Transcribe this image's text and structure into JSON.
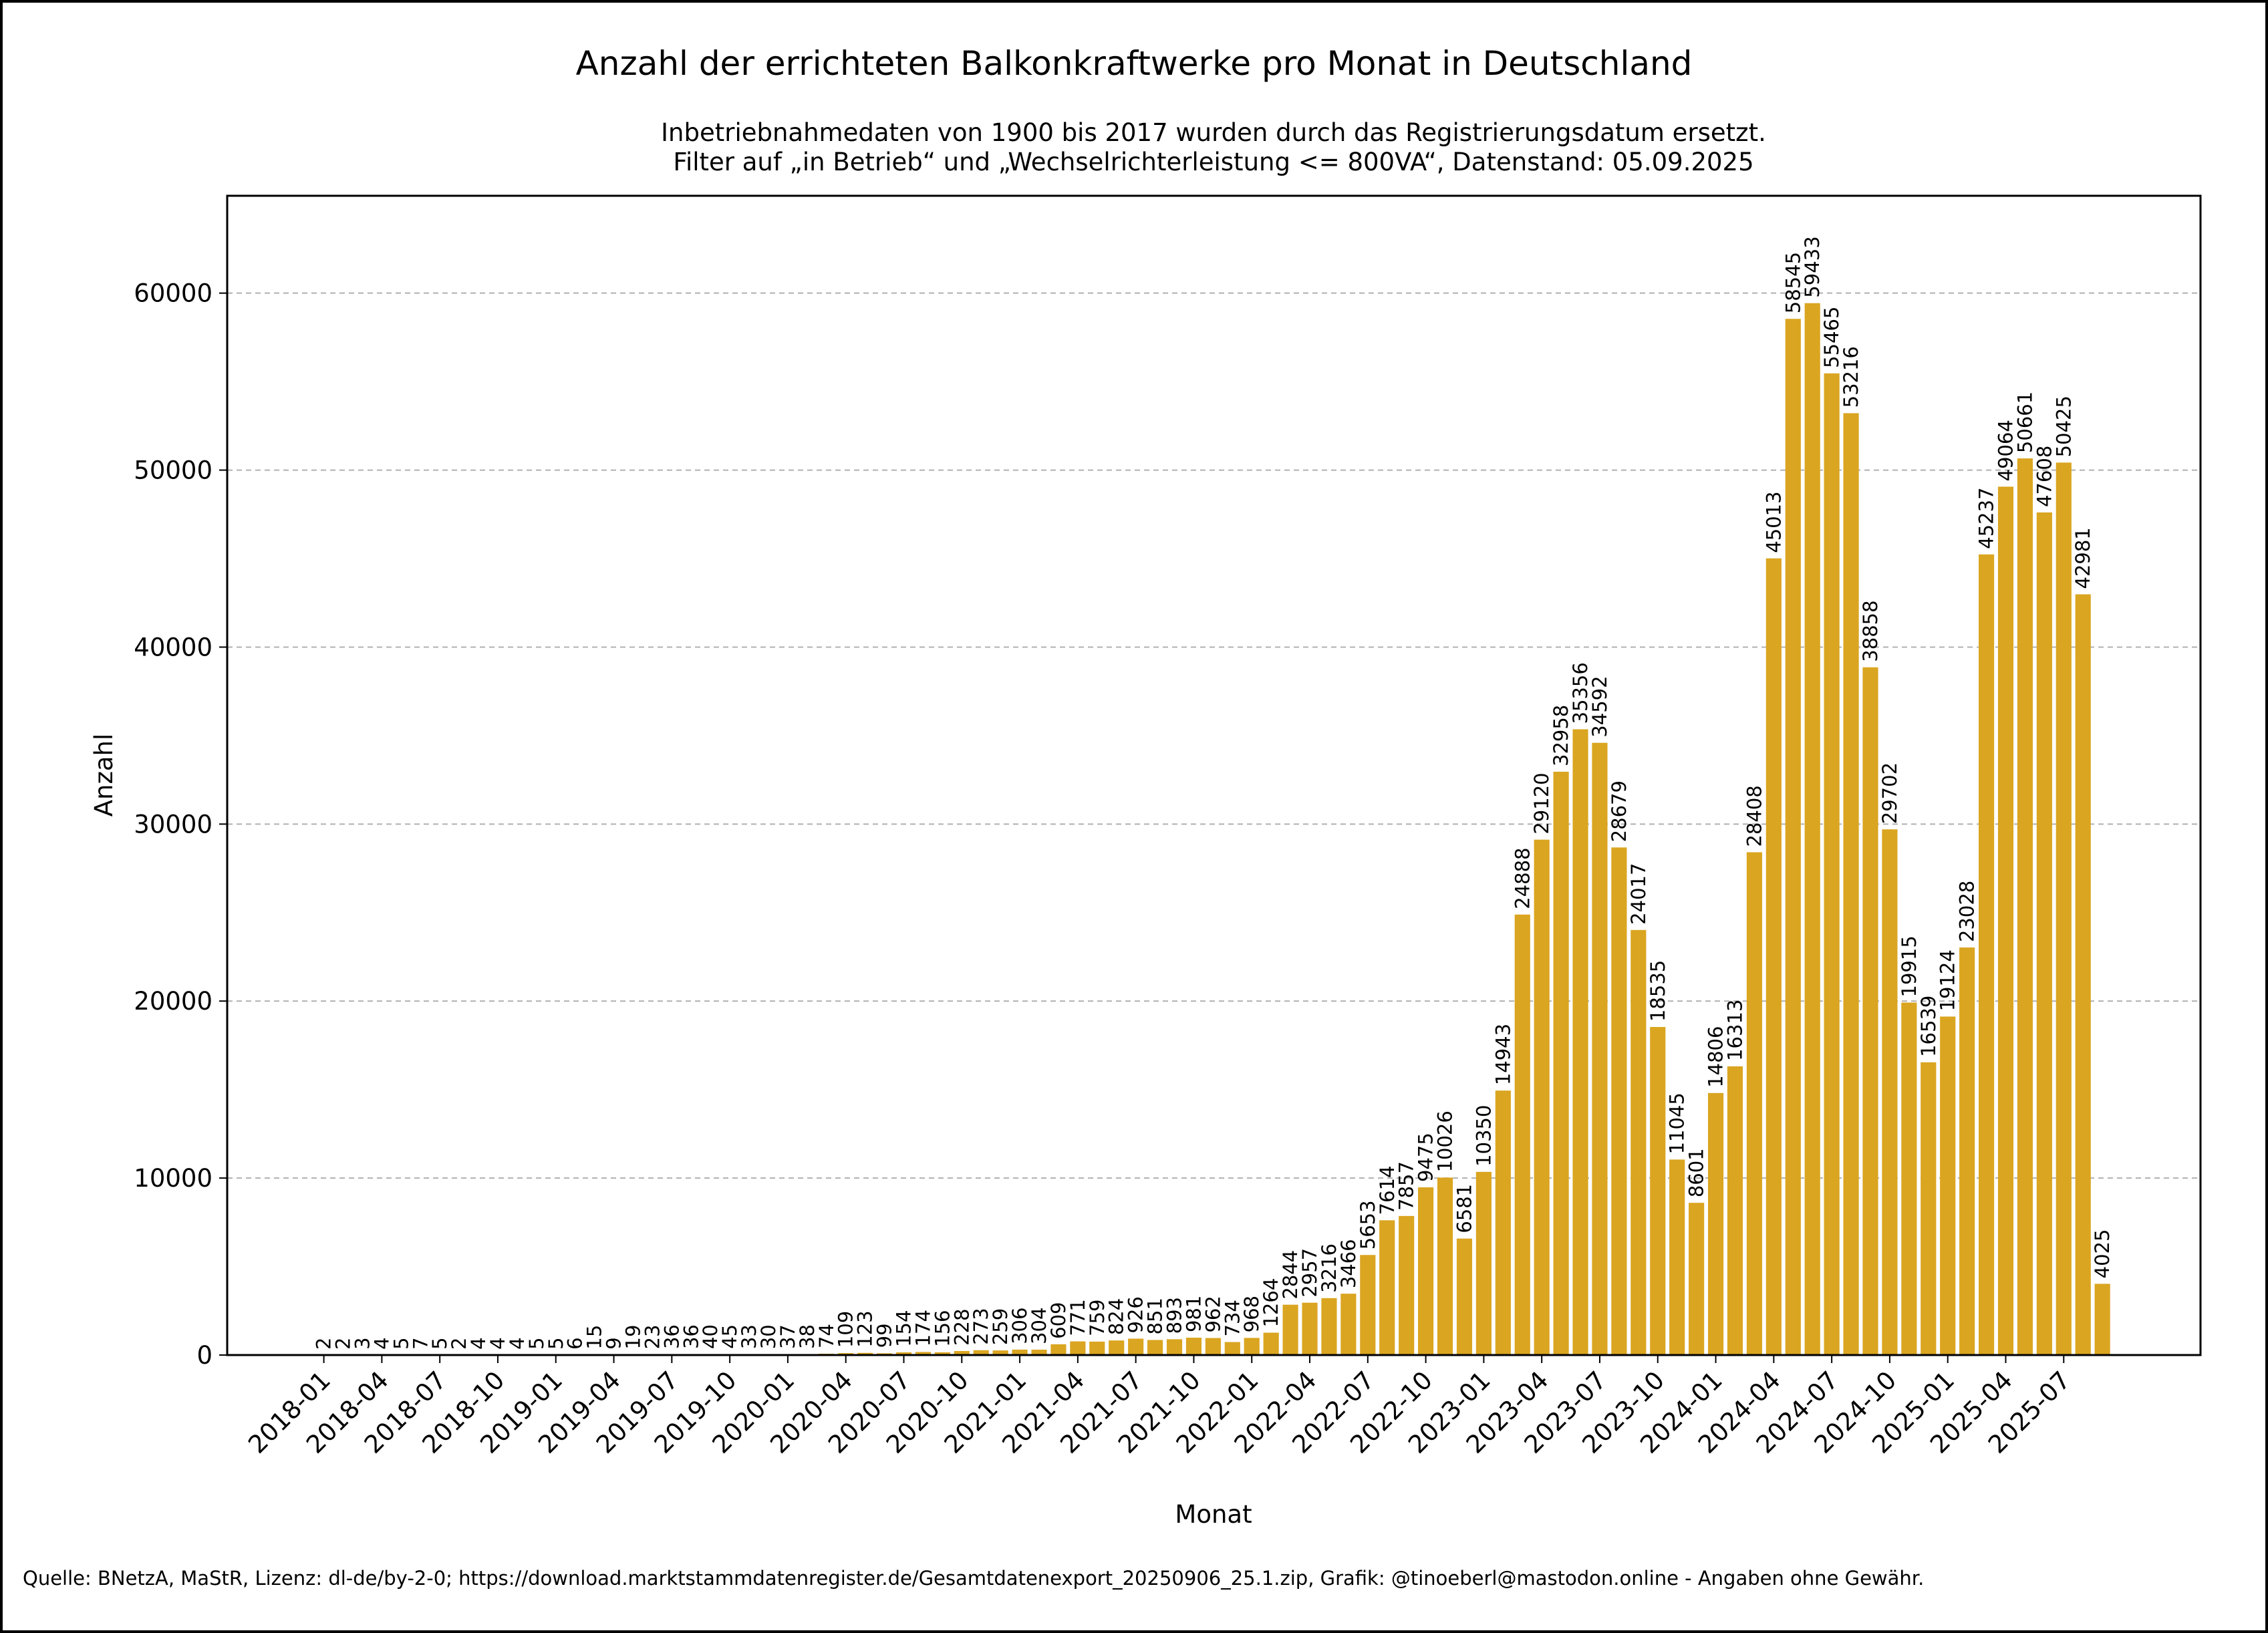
{
  "chart_data": {
    "type": "bar",
    "title": "Anzahl der errichteten Balkonkraftwerke pro Monat in Deutschland",
    "subtitle_lines": [
      "Inbetriebnahmedaten von 1900 bis 2017 wurden durch das Registrierungsdatum ersetzt.",
      "Filter auf „in Betrieb“ und „Wechselrichterleistung <= 800VA“, Datenstand: 05.09.2025"
    ],
    "xlabel": "Monat",
    "ylabel": "Anzahl",
    "ylim": [
      0,
      65500
    ],
    "yticks": [
      0,
      10000,
      20000,
      30000,
      40000,
      50000,
      60000
    ],
    "grid": "horizontal-dashed",
    "bar_color": "#DAA520",
    "categories": [
      "2018-01",
      "2018-02",
      "2018-03",
      "2018-04",
      "2018-05",
      "2018-06",
      "2018-07",
      "2018-08",
      "2018-09",
      "2018-10",
      "2018-11",
      "2018-12",
      "2019-01",
      "2019-02",
      "2019-03",
      "2019-04",
      "2019-05",
      "2019-06",
      "2019-07",
      "2019-08",
      "2019-09",
      "2019-10",
      "2019-11",
      "2019-12",
      "2020-01",
      "2020-02",
      "2020-03",
      "2020-04",
      "2020-05",
      "2020-06",
      "2020-07",
      "2020-08",
      "2020-09",
      "2020-10",
      "2020-11",
      "2020-12",
      "2021-01",
      "2021-02",
      "2021-03",
      "2021-04",
      "2021-05",
      "2021-06",
      "2021-07",
      "2021-08",
      "2021-09",
      "2021-10",
      "2021-11",
      "2021-12",
      "2022-01",
      "2022-02",
      "2022-03",
      "2022-04",
      "2022-05",
      "2022-06",
      "2022-07",
      "2022-08",
      "2022-09",
      "2022-10",
      "2022-11",
      "2022-12",
      "2023-01",
      "2023-02",
      "2023-03",
      "2023-04",
      "2023-05",
      "2023-06",
      "2023-07",
      "2023-08",
      "2023-09",
      "2023-10",
      "2023-11",
      "2023-12",
      "2024-01",
      "2024-02",
      "2024-03",
      "2024-04",
      "2024-05",
      "2024-06",
      "2024-07",
      "2024-08",
      "2024-09",
      "2024-10",
      "2024-11",
      "2024-12",
      "2025-01",
      "2025-02",
      "2025-03",
      "2025-04",
      "2025-05",
      "2025-06",
      "2025-07",
      "2025-08",
      "2025-09"
    ],
    "values": [
      2,
      2,
      3,
      4,
      5,
      7,
      5,
      2,
      4,
      4,
      4,
      5,
      5,
      6,
      15,
      9,
      19,
      23,
      36,
      36,
      40,
      45,
      33,
      30,
      37,
      38,
      74,
      109,
      123,
      99,
      154,
      174,
      156,
      228,
      273,
      259,
      306,
      304,
      609,
      771,
      759,
      824,
      926,
      851,
      893,
      981,
      962,
      734,
      968,
      1264,
      2844,
      2957,
      3216,
      3466,
      5653,
      7614,
      7857,
      9475,
      10026,
      6581,
      10350,
      14943,
      24888,
      29120,
      32958,
      35356,
      34592,
      28679,
      24017,
      18535,
      11045,
      8601,
      14806,
      16313,
      28408,
      45013,
      58545,
      59433,
      55465,
      53216,
      38858,
      29702,
      19915,
      16539,
      19124,
      23028,
      45237,
      49064,
      50661,
      47608,
      50425,
      42981,
      4025
    ],
    "xtick_labels": [
      "2018-01",
      "2018-04",
      "2018-07",
      "2018-10",
      "2019-01",
      "2019-04",
      "2019-07",
      "2019-10",
      "2020-01",
      "2020-04",
      "2020-07",
      "2020-10",
      "2021-01",
      "2021-04",
      "2021-07",
      "2021-10",
      "2022-01",
      "2022-04",
      "2022-07",
      "2022-10",
      "2023-01",
      "2023-04",
      "2023-07",
      "2023-10",
      "2024-01",
      "2024-04",
      "2024-07",
      "2024-10",
      "2025-01",
      "2025-04",
      "2025-07"
    ],
    "xtick_every": 3,
    "source": "Quelle: BNetzA, MaStR, Lizenz: dl-de/by-2-0; https://download.marktstammdatenregister.de/Gesamtdatenexport_20250906_25.1.zip, Grafik: @tinoeberl@mastodon.online - Angaben ohne Gewähr."
  }
}
